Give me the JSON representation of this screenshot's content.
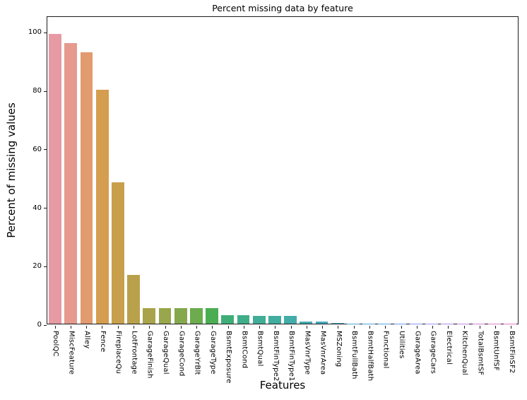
{
  "chart_data": {
    "type": "bar",
    "title": "Percent missing data by feature",
    "xlabel": "Features",
    "ylabel": "Percent of missing values",
    "ylim": [
      0,
      105.4
    ],
    "yticks": [
      0,
      20,
      40,
      60,
      80,
      100
    ],
    "grid": false,
    "legend": false,
    "categories": [
      "PoolQC",
      "MiscFeature",
      "Alley",
      "Fence",
      "FireplaceQu",
      "LotFrontage",
      "GarageFinish",
      "GarageQual",
      "GarageCond",
      "GarageYrBlt",
      "GarageType",
      "BsmtExposure",
      "BsmtCond",
      "BsmtQual",
      "BsmtFinType2",
      "BsmtFinType1",
      "MasVnrType",
      "MasVnrArea",
      "MSZoning",
      "BsmtFullBath",
      "BsmtHalfBath",
      "Functional",
      "Utilities",
      "GarageArea",
      "GarageCars",
      "Electrical",
      "KitchenQual",
      "TotalBsmtSF",
      "BsmtUnfSF",
      "BsmtFinSF2"
    ],
    "values": [
      99.66,
      96.4,
      93.22,
      80.44,
      48.65,
      16.65,
      5.45,
      5.45,
      5.45,
      5.45,
      5.38,
      2.81,
      2.81,
      2.77,
      2.74,
      2.71,
      0.82,
      0.79,
      0.14,
      0.07,
      0.07,
      0.07,
      0.07,
      0.03,
      0.03,
      0.03,
      0.03,
      0.03,
      0.03,
      0.03
    ],
    "bar_colors": [
      "#e79aa4",
      "#e59a8d",
      "#e29a6f",
      "#d59d4f",
      "#c89f4a",
      "#b9a14b",
      "#a9a34b",
      "#98a64c",
      "#85a84d",
      "#6cab4e",
      "#4bad52",
      "#3eae78",
      "#3fae88",
      "#40ae95",
      "#41ad9f",
      "#42aca9",
      "#44abb2",
      "#46aaba",
      "#48a8c3",
      "#4aa6cd",
      "#50a4d8",
      "#5ba1e3",
      "#6e9dec",
      "#8897ef",
      "#9d93ee",
      "#b08ee9",
      "#c189e1",
      "#d084d8",
      "#dd80cd",
      "#e67dc0"
    ],
    "spine_color": "#1c1c1c"
  }
}
